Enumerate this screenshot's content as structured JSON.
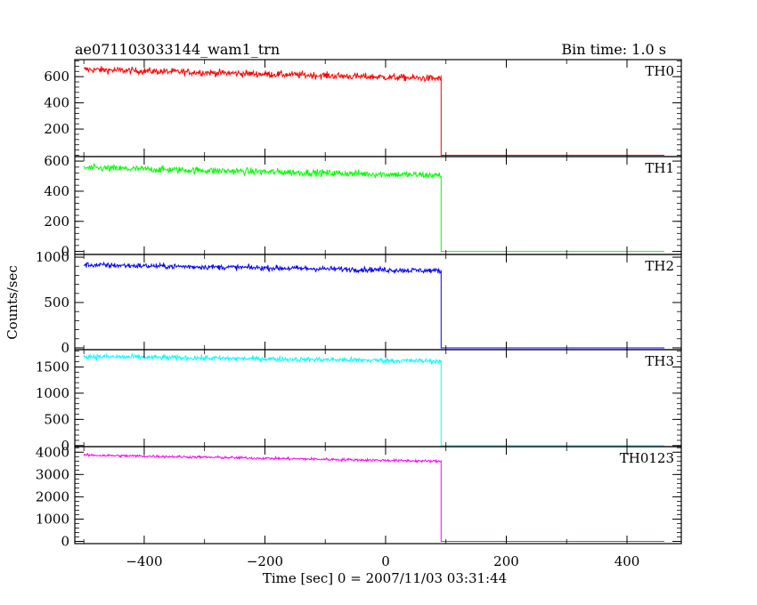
{
  "chart_data": {
    "type": "line",
    "title": "ae071103033144_wam1_trn",
    "bin_label": "Bin time: 1.0 s",
    "xlabel": "Time [sec] 0 = 2007/11/03 03:31:44",
    "ylabel": "Counts/sec",
    "xlim": [
      -515,
      490
    ],
    "xticks": [
      -400,
      -200,
      0,
      200,
      400
    ],
    "xtick_labels": [
      "−400",
      "−200",
      "0",
      "200",
      "400"
    ],
    "step_time": 92,
    "data_end": 462,
    "panels": [
      {
        "name": "TH0",
        "color": "#ff0000",
        "ylim": [
          -10,
          730
        ],
        "yticks": [
          200,
          400,
          600
        ],
        "ytick_labels": [
          "200",
          "400",
          "600"
        ],
        "start_level": 655,
        "end_level": 585,
        "noise": 25,
        "post_level": 0
      },
      {
        "name": "TH1",
        "color": "#00ff00",
        "ylim": [
          -20,
          630
        ],
        "yticks": [
          0,
          200,
          400,
          600
        ],
        "ytick_labels": [
          "0",
          "200",
          "400",
          "600"
        ],
        "start_level": 555,
        "end_level": 505,
        "noise": 22,
        "post_level": 0
      },
      {
        "name": "TH2",
        "color": "#0000ff",
        "ylim": [
          -20,
          1030
        ],
        "yticks": [
          0,
          500,
          1000
        ],
        "ytick_labels": [
          "0",
          "500",
          "1000"
        ],
        "start_level": 915,
        "end_level": 850,
        "noise": 28,
        "post_level": 0
      },
      {
        "name": "TH3",
        "color": "#00ffff",
        "ylim": [
          -20,
          1830
        ],
        "yticks": [
          0,
          500,
          1000,
          1500
        ],
        "ytick_labels": [
          "0",
          "500",
          "1000",
          "1500"
        ],
        "start_level": 1700,
        "end_level": 1610,
        "noise": 45,
        "post_level": 0
      },
      {
        "name": "TH0123",
        "color": "#ff00ff",
        "ylim": [
          -100,
          4250
        ],
        "yticks": [
          0,
          1000,
          2000,
          3000,
          4000
        ],
        "ytick_labels": [
          "0",
          "1000",
          "2000",
          "3000",
          "4000"
        ],
        "start_level": 3870,
        "end_level": 3590,
        "noise": 55,
        "post_level": 0
      }
    ]
  }
}
